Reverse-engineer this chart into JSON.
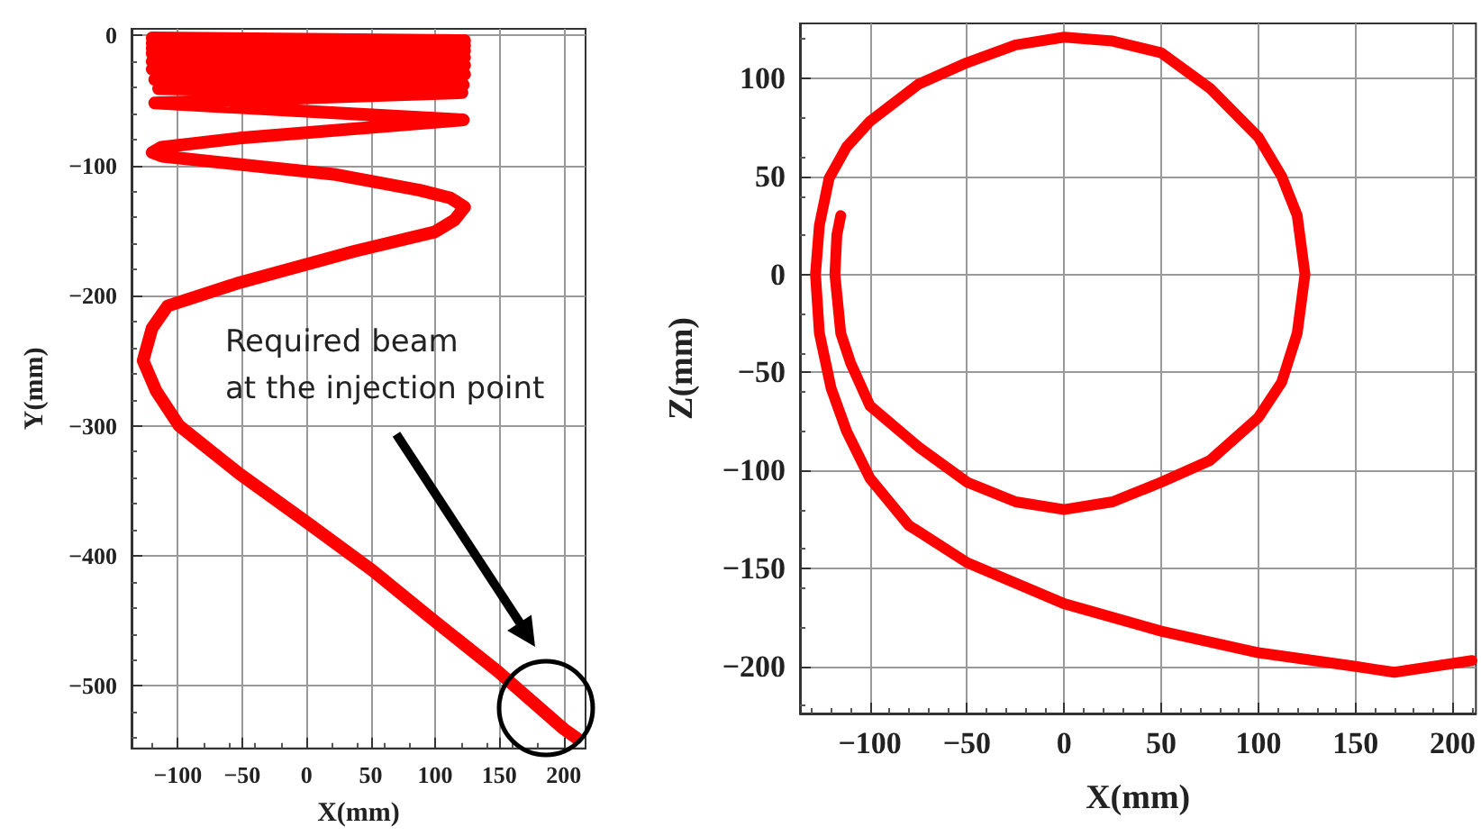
{
  "chart_data": [
    {
      "type": "line",
      "xlabel": "X(mm)",
      "ylabel": "Y(mm)",
      "xlim": [
        -136,
        217
      ],
      "ylim": [
        -548,
        5
      ],
      "xticks": [
        -100,
        -50,
        0,
        50,
        100,
        150,
        200
      ],
      "yticks": [
        -500,
        -400,
        -300,
        -200,
        -100,
        0
      ],
      "grid": true,
      "marker": "none",
      "line_style": "solid",
      "series": [
        {
          "color": "#ff0000",
          "x": [
            -120,
            123,
            -120,
            123,
            -120,
            123,
            -120,
            123,
            -120,
            123,
            -120,
            123,
            -118,
            122,
            -115,
            121,
            -118,
            122,
            -52,
            -113,
            -120,
            -112,
            23,
            88,
            112,
            123,
            115,
            100,
            37,
            -52,
            -108,
            -120,
            -127,
            -117,
            -99,
            -52,
            0,
            51,
            97,
            149,
            200,
            210
          ],
          "values": [
            -2,
            -4,
            -6,
            -8,
            -10,
            -12,
            -14,
            -17,
            -20,
            -23,
            -26,
            -30,
            -34,
            -38,
            -41,
            -44,
            -52,
            -65,
            -79,
            -86,
            -90,
            -93,
            -107,
            -119,
            -125,
            -132,
            -142,
            -151,
            -166,
            -190,
            -208,
            -225,
            -250,
            -273,
            -300,
            -337,
            -374,
            -411,
            -448,
            -489,
            -533,
            -540
          ]
        }
      ],
      "annotations": [
        "Required beam\nat the injection point"
      ]
    },
    {
      "type": "line",
      "xlabel": "X(mm)",
      "ylabel": "Z(mm)",
      "xlim": [
        -136,
        212
      ],
      "ylim": [
        -224,
        128
      ],
      "xticks": [
        -100,
        -50,
        0,
        50,
        100,
        150,
        200
      ],
      "yticks": [
        -200,
        -150,
        -100,
        -50,
        0,
        50,
        100
      ],
      "grid": true,
      "marker": "none",
      "line_style": "solid",
      "series": [
        {
          "color": "#ff0000",
          "x": [
            210,
            170,
            150,
            100,
            50,
            0,
            -50,
            -80,
            -100,
            -112,
            -120,
            -126,
            -128,
            -126,
            -121,
            -112,
            -100,
            -75,
            -50,
            -25,
            0,
            25,
            50,
            75,
            100,
            112,
            120,
            124,
            120,
            112,
            100,
            75,
            50,
            25,
            0,
            -25,
            -50,
            -75,
            -100,
            -110,
            -115,
            -118,
            -117,
            -115
          ],
          "values": [
            -197,
            -203,
            -200,
            -193,
            -182,
            -168,
            -147,
            -128,
            -104,
            -80,
            -58,
            -30,
            0,
            25,
            49,
            65,
            78,
            97,
            108,
            117,
            121,
            119,
            113,
            95,
            70,
            50,
            30,
            0,
            -30,
            -55,
            -73,
            -95,
            -106,
            -116,
            -120,
            -116,
            -106,
            -88,
            -67,
            -45,
            -30,
            0,
            20,
            30
          ]
        }
      ]
    }
  ]
}
